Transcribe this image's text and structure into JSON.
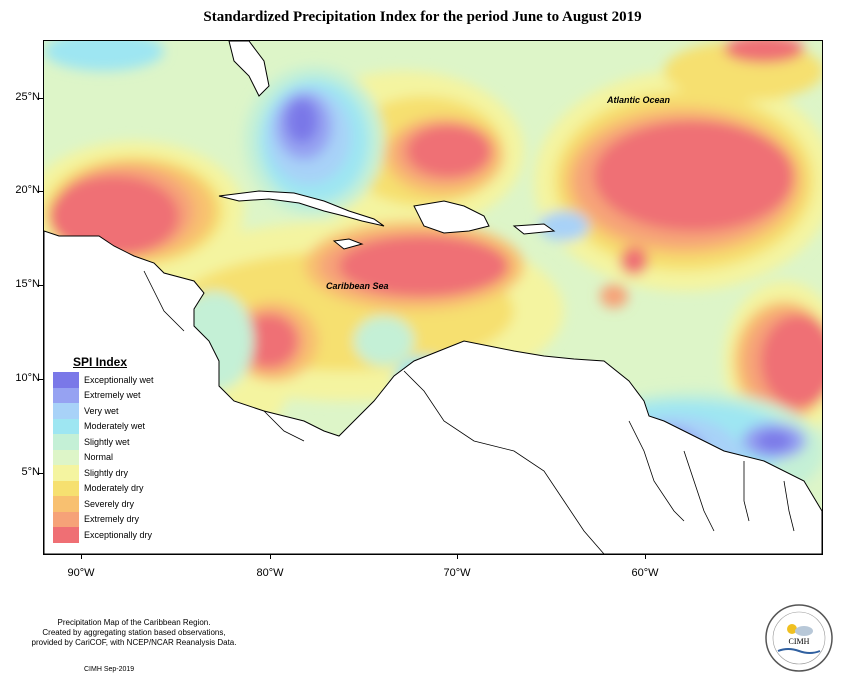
{
  "title": "Standardized Precipitation Index for the period June to August 2019",
  "axes": {
    "y_ticks": [
      "25°N",
      "20°N",
      "15°N",
      "10°N",
      "5°N"
    ],
    "x_ticks": [
      "90°W",
      "80°W",
      "70°W",
      "60°W"
    ]
  },
  "labels": {
    "atlantic": "Atlantic Ocean",
    "caribbean": "Caribbean Sea"
  },
  "legend": {
    "title": "SPI Index",
    "items": [
      {
        "label": "Exceptionally wet",
        "color": "#7a78e8"
      },
      {
        "label": "Extremely wet",
        "color": "#96a2f2"
      },
      {
        "label": "Very wet",
        "color": "#a8d2f8"
      },
      {
        "label": "Moderately wet",
        "color": "#9ee6f2"
      },
      {
        "label": "Slightly wet",
        "color": "#c4f0d6"
      },
      {
        "label": "Normal",
        "color": "#ddf5c8"
      },
      {
        "label": "Slightly dry",
        "color": "#f4f4a0"
      },
      {
        "label": "Moderately dry",
        "color": "#f6e070"
      },
      {
        "label": "Severely dry",
        "color": "#f8c070"
      },
      {
        "label": "Extremely dry",
        "color": "#f6a278"
      },
      {
        "label": "Exceptionally dry",
        "color": "#ef6f74"
      }
    ]
  },
  "footer": {
    "line1": "Precipitation Map of the Caribbean Region.",
    "line2": "Created by aggregating station based observations,",
    "line3": "provided by CariCOF, with NCEP/NCAR Reanalysis Data.",
    "credit": "CIMH Sep-2019",
    "logo_text": "CIMH"
  }
}
